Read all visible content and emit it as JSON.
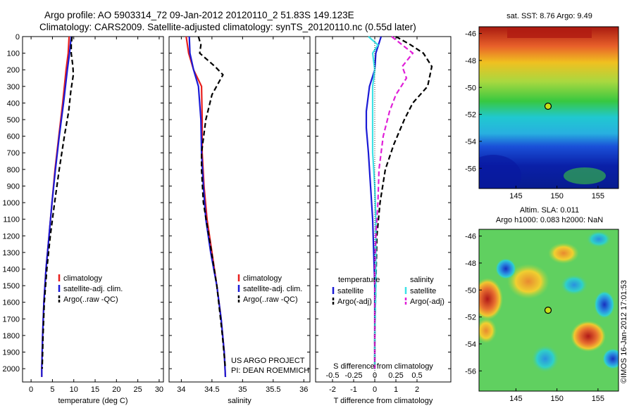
{
  "header": {
    "line1": "Argo profile: AO 5903314_72 09-Jan-2012 20120110_2 51.83S 149.123E",
    "line2": "Climatology: CARS2009. Satellite-adjusted climatology: synTS_20120110.nc (0.55d later)"
  },
  "colors": {
    "red": "#e8201e",
    "blue": "#1a1ad6",
    "black": "#000000",
    "cyan": "#3de2e6",
    "magenta": "#e020d8"
  },
  "chart_data": [
    {
      "type": "line",
      "xlabel": "temperature (deg C)",
      "xlim": [
        -2,
        31
      ],
      "ylim": [
        2080,
        0
      ],
      "xticks": [
        0,
        5,
        10,
        15,
        20,
        25,
        30
      ],
      "yticks": [
        0,
        100,
        200,
        300,
        400,
        500,
        600,
        700,
        800,
        900,
        1000,
        1100,
        1200,
        1300,
        1400,
        1500,
        1600,
        1700,
        1800,
        1900,
        2000
      ],
      "legend": [
        "climatology",
        "satellite-adj. clim.",
        "Argo(..raw -QC)"
      ],
      "series": [
        {
          "name": "climatology",
          "color": "red",
          "dash": false,
          "points": [
            [
              8.9,
              0
            ],
            [
              8.7,
              100
            ],
            [
              8.2,
              200
            ],
            [
              7.4,
              400
            ],
            [
              6.5,
              600
            ],
            [
              5.6,
              800
            ],
            [
              4.9,
              1000
            ],
            [
              4.2,
              1200
            ],
            [
              3.5,
              1400
            ],
            [
              3.0,
              1600
            ],
            [
              2.7,
              1800
            ],
            [
              2.5,
              2000
            ],
            [
              2.5,
              2050
            ]
          ]
        },
        {
          "name": "satellite-adj. clim.",
          "color": "blue",
          "dash": false,
          "points": [
            [
              9.4,
              0
            ],
            [
              9.0,
              100
            ],
            [
              8.5,
              200
            ],
            [
              7.6,
              400
            ],
            [
              6.6,
              600
            ],
            [
              5.7,
              800
            ],
            [
              4.9,
              1000
            ],
            [
              4.2,
              1200
            ],
            [
              3.5,
              1400
            ],
            [
              3.0,
              1600
            ],
            [
              2.7,
              1800
            ],
            [
              2.5,
              2000
            ],
            [
              2.5,
              2050
            ]
          ]
        },
        {
          "name": "Argo(..raw -QC)",
          "color": "black",
          "dash": true,
          "points": [
            [
              9.6,
              0
            ],
            [
              9.4,
              50
            ],
            [
              9.4,
              100
            ],
            [
              9.8,
              180
            ],
            [
              9.9,
              230
            ],
            [
              9.3,
              330
            ],
            [
              8.8,
              450
            ],
            [
              7.8,
              600
            ],
            [
              6.6,
              800
            ],
            [
              5.5,
              1000
            ],
            [
              4.5,
              1200
            ],
            [
              3.7,
              1400
            ],
            [
              3.1,
              1600
            ],
            [
              2.8,
              1800
            ],
            [
              2.6,
              2000
            ]
          ]
        }
      ]
    },
    {
      "type": "line",
      "xlabel": "salinity",
      "xlim": [
        33.8,
        36.1
      ],
      "ylim": [
        2080,
        0
      ],
      "xticks": [
        34,
        34.5,
        35,
        35.5,
        36
      ],
      "legend": [
        "climatology",
        "satellite-adj. clim.",
        "Argo(..raw -QC)"
      ],
      "annotation": [
        "US ARGO PROJECT",
        "PI: DEAN ROEMMICH"
      ],
      "series": [
        {
          "name": "climatology",
          "color": "red",
          "dash": false,
          "points": [
            [
              34.08,
              0
            ],
            [
              34.12,
              100
            ],
            [
              34.2,
              200
            ],
            [
              34.33,
              300
            ],
            [
              34.34,
              500
            ],
            [
              34.34,
              700
            ],
            [
              34.37,
              900
            ],
            [
              34.42,
              1100
            ],
            [
              34.5,
              1300
            ],
            [
              34.58,
              1500
            ],
            [
              34.65,
              1700
            ],
            [
              34.7,
              1900
            ],
            [
              34.72,
              2050
            ]
          ]
        },
        {
          "name": "satellite-adj. clim.",
          "color": "blue",
          "dash": false,
          "points": [
            [
              34.13,
              0
            ],
            [
              34.14,
              100
            ],
            [
              34.2,
              200
            ],
            [
              34.28,
              300
            ],
            [
              34.32,
              500
            ],
            [
              34.33,
              700
            ],
            [
              34.36,
              900
            ],
            [
              34.4,
              1100
            ],
            [
              34.48,
              1300
            ],
            [
              34.58,
              1500
            ],
            [
              34.65,
              1700
            ],
            [
              34.7,
              1900
            ],
            [
              34.72,
              2050
            ]
          ]
        },
        {
          "name": "Argo(..raw -QC)",
          "color": "black",
          "dash": true,
          "points": [
            [
              34.28,
              0
            ],
            [
              34.32,
              50
            ],
            [
              34.3,
              100
            ],
            [
              34.55,
              180
            ],
            [
              34.68,
              230
            ],
            [
              34.5,
              350
            ],
            [
              34.4,
              500
            ],
            [
              34.33,
              700
            ],
            [
              34.33,
              800
            ],
            [
              34.36,
              1000
            ],
            [
              34.45,
              1200
            ],
            [
              34.58,
              1500
            ],
            [
              34.67,
              1800
            ],
            [
              34.72,
              2000
            ]
          ]
        }
      ]
    },
    {
      "type": "line",
      "xlabel": "T difference from climatology",
      "xlabel2": "S difference from climatology",
      "xlim": [
        -2.8,
        3.6
      ],
      "ylim": [
        2080,
        0
      ],
      "xticks": [
        -2,
        -1,
        0,
        1,
        2
      ],
      "xticklabels": [
        "-2",
        "-1",
        "0",
        "1",
        "2"
      ],
      "sticks": [
        -0.5,
        -0.25,
        0,
        0.25,
        0.5
      ],
      "legend_titles": [
        "temperature",
        "salinity"
      ],
      "legend": [
        "satellite",
        "Argo(-adj)",
        "satellite",
        "Argo(-adj)"
      ],
      "series": [
        {
          "name": "satellite",
          "color": "blue",
          "dash": false,
          "points": [
            [
              0.3,
              0
            ],
            [
              0.05,
              100
            ],
            [
              0.0,
              200
            ],
            [
              -0.25,
              300
            ],
            [
              -0.4,
              450
            ],
            [
              -0.4,
              550
            ],
            [
              -0.3,
              700
            ],
            [
              -0.2,
              900
            ],
            [
              -0.1,
              1100
            ],
            [
              -0.05,
              1300
            ],
            [
              0.0,
              1500
            ],
            [
              0.0,
              1800
            ],
            [
              0.0,
              2000
            ]
          ]
        },
        {
          "name": "Argo(-adj)",
          "color": "black",
          "dash": true,
          "points": [
            [
              1.0,
              0
            ],
            [
              1.7,
              50
            ],
            [
              2.3,
              100
            ],
            [
              2.7,
              180
            ],
            [
              2.5,
              300
            ],
            [
              1.8,
              400
            ],
            [
              1.4,
              500
            ],
            [
              0.9,
              650
            ],
            [
              0.5,
              800
            ],
            [
              0.25,
              1000
            ],
            [
              0.1,
              1200
            ],
            [
              0.05,
              1500
            ],
            [
              0.0,
              1800
            ],
            [
              0.0,
              2000
            ]
          ]
        },
        {
          "name": "satellite",
          "color": "cyan",
          "dash": false,
          "points": [
            [
              -0.3,
              0
            ],
            [
              0.15,
              50
            ],
            [
              -0.1,
              100
            ],
            [
              0.0,
              200
            ],
            [
              -0.1,
              300
            ],
            [
              -0.1,
              500
            ],
            [
              -0.1,
              700
            ],
            [
              0.0,
              900
            ],
            [
              0.05,
              1100
            ],
            [
              0.05,
              1300
            ],
            [
              0.05,
              1500
            ],
            [
              0.0,
              1800
            ],
            [
              0.0,
              2000
            ]
          ]
        },
        {
          "name": "Argo(-adj)",
          "color": "magenta",
          "dash": true,
          "points": [
            [
              0.8,
              0
            ],
            [
              1.8,
              100
            ],
            [
              1.3,
              180
            ],
            [
              1.5,
              250
            ],
            [
              1.0,
              350
            ],
            [
              0.7,
              450
            ],
            [
              0.4,
              600
            ],
            [
              0.2,
              800
            ],
            [
              0.15,
              1000
            ],
            [
              0.05,
              1200
            ],
            [
              0.0,
              1400
            ],
            [
              0.0,
              1800
            ],
            [
              0.0,
              2000
            ]
          ]
        }
      ]
    },
    {
      "type": "heatmap",
      "title": "sat. SST: 8.76 Argo: 9.49",
      "xticks": [
        145,
        150,
        155
      ],
      "yticks": [
        -46,
        -48,
        -50,
        -52,
        -54,
        -56
      ],
      "xlim": [
        140.5,
        157.5
      ],
      "ylim": [
        -57.5,
        -45.5
      ],
      "marker": [
        149.123,
        -51.83
      ]
    },
    {
      "type": "heatmap",
      "title": "Altim. SLA: 0.011",
      "subtitle": "Argo h1000: 0.083 h2000: NaN",
      "xticks": [
        145,
        150,
        155
      ],
      "yticks": [
        -46,
        -48,
        -50,
        -52,
        -54,
        -56
      ],
      "xlim": [
        140.5,
        157.5
      ],
      "ylim": [
        -57.5,
        -45.5
      ],
      "marker": [
        149.123,
        -51.83
      ]
    }
  ],
  "footer": {
    "stamp": "©IMOS 16-Jan-2012 17:01:53"
  }
}
